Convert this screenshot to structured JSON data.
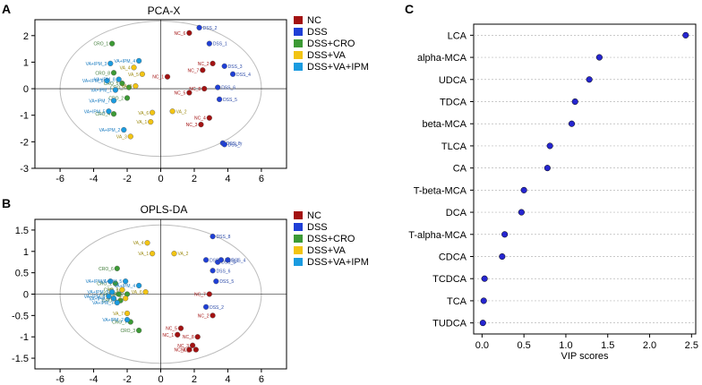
{
  "colors": {
    "NC": "#a31212",
    "DSS": "#1f3fd6",
    "DSS+CRO": "#3c9a35",
    "DSS+VA": "#f2c414",
    "DSS+VA+IPM": "#1a9be0",
    "vip_dot": "#2626d0",
    "text_NC": "#a31212",
    "text_DSS": "#2b4aa8",
    "text_CRO": "#3c7a35",
    "text_VA": "#9c8a10",
    "text_VAIPM": "#1a7bc0"
  },
  "panels": {
    "A": {
      "letter": "A",
      "title": "PCA-X"
    },
    "B": {
      "letter": "B",
      "title": "OPLS-DA"
    },
    "C": {
      "letter": "C",
      "title": ""
    }
  },
  "chart_data": [
    {
      "id": "pca",
      "type": "scatter",
      "title": "PCA-X",
      "xlim": [
        -7.5,
        7.5
      ],
      "ylim": [
        -3,
        2.6
      ],
      "xticks": [
        -6,
        -4,
        -2,
        0,
        2,
        4,
        6
      ],
      "yticks": [
        -3,
        -2,
        -1,
        0,
        1,
        2
      ],
      "ellipse": {
        "rx": 6.0,
        "ry": 2.55
      },
      "legend": [
        "NC",
        "DSS",
        "DSS+CRO",
        "DSS+VA",
        "DSS+VA+IPM"
      ],
      "points": [
        {
          "label": "NC_6",
          "group": "NC",
          "x": 1.7,
          "y": 2.1
        },
        {
          "label": "NC_2",
          "group": "NC",
          "x": 3.1,
          "y": 0.95
        },
        {
          "label": "NC_7",
          "group": "NC",
          "x": 2.5,
          "y": 0.7
        },
        {
          "label": "NC_1",
          "group": "NC",
          "x": 0.4,
          "y": 0.45
        },
        {
          "label": "NC_5",
          "group": "NC",
          "x": 1.7,
          "y": -0.15
        },
        {
          "label": "NC_8",
          "group": "NC",
          "x": 2.6,
          "y": 0.0
        },
        {
          "label": "NC_4",
          "group": "NC",
          "x": 2.9,
          "y": -1.1
        },
        {
          "label": "NC_3",
          "group": "NC",
          "x": 2.4,
          "y": -1.35
        },
        {
          "label": "DSS_2",
          "group": "DSS",
          "x": 2.3,
          "y": 2.3
        },
        {
          "label": "DSS_1",
          "group": "DSS",
          "x": 2.9,
          "y": 1.7
        },
        {
          "label": "DSS_3",
          "group": "DSS",
          "x": 3.8,
          "y": 0.85
        },
        {
          "label": "DSS_4",
          "group": "DSS",
          "x": 4.3,
          "y": 0.55
        },
        {
          "label": "DSS_6",
          "group": "DSS",
          "x": 3.4,
          "y": 0.05
        },
        {
          "label": "DSS_5",
          "group": "DSS",
          "x": 3.5,
          "y": -0.4
        },
        {
          "label": "DSS_8",
          "group": "DSS",
          "x": 3.7,
          "y": -2.05
        },
        {
          "label": "DSS_7",
          "group": "DSS",
          "x": 3.8,
          "y": -2.1
        },
        {
          "label": "CRO_1",
          "group": "DSS+CRO",
          "x": -2.9,
          "y": 1.7
        },
        {
          "label": "CRO_3",
          "group": "DSS+CRO",
          "x": -1.9,
          "y": 0.05
        },
        {
          "label": "CRO_2",
          "group": "DSS+CRO",
          "x": -2.0,
          "y": -0.35
        },
        {
          "label": "CRO_4",
          "group": "DSS+CRO",
          "x": -2.8,
          "y": -0.95
        },
        {
          "label": "CRO_5",
          "group": "DSS+CRO",
          "x": -2.3,
          "y": 0.2
        },
        {
          "label": "CRO_8",
          "group": "DSS+CRO",
          "x": -2.8,
          "y": 0.6
        },
        {
          "label": "VA_4",
          "group": "DSS+VA",
          "x": -1.6,
          "y": 0.8
        },
        {
          "label": "VA_5",
          "group": "DSS+VA",
          "x": -1.1,
          "y": 0.55
        },
        {
          "label": "VA_2",
          "group": "DSS+VA",
          "x": 0.7,
          "y": -0.85
        },
        {
          "label": "VA_6",
          "group": "DSS+VA",
          "x": -0.5,
          "y": -0.9
        },
        {
          "label": "VA_1",
          "group": "DSS+VA",
          "x": -0.6,
          "y": -1.25
        },
        {
          "label": "VA_3",
          "group": "DSS+VA",
          "x": -1.8,
          "y": -1.8
        },
        {
          "label": "VA_8",
          "group": "DSS+VA",
          "x": -1.5,
          "y": 0.1
        },
        {
          "label": "VA+IPM_3",
          "group": "DSS+VA+IPM",
          "x": -3.0,
          "y": 0.95
        },
        {
          "label": "VA+IPM_4",
          "group": "DSS+VA+IPM",
          "x": -1.3,
          "y": 1.05
        },
        {
          "label": "VA+IPM_6",
          "group": "DSS+VA+IPM",
          "x": -3.2,
          "y": 0.3
        },
        {
          "label": "VA+IPM_8",
          "group": "DSS+VA+IPM",
          "x": -2.5,
          "y": 0.35
        },
        {
          "label": "VA+IPM_1",
          "group": "DSS+VA+IPM",
          "x": -2.7,
          "y": -0.05
        },
        {
          "label": "VA+IPM_7",
          "group": "DSS+VA+IPM",
          "x": -2.8,
          "y": -0.45
        },
        {
          "label": "VA+IPM_5",
          "group": "DSS+VA+IPM",
          "x": -3.1,
          "y": -0.85
        },
        {
          "label": "VA+IPM_2",
          "group": "DSS+VA+IPM",
          "x": -2.2,
          "y": -1.55
        }
      ]
    },
    {
      "id": "oplsda",
      "type": "scatter",
      "title": "OPLS-DA",
      "xlim": [
        -7.5,
        7.5
      ],
      "ylim": [
        -1.75,
        1.75
      ],
      "xticks": [
        -6,
        -4,
        -2,
        0,
        2,
        4,
        6
      ],
      "yticks": [
        -1.5,
        -1,
        -0.5,
        0,
        0.5,
        1,
        1.5
      ],
      "ellipse": {
        "rx": 6.0,
        "ry": 1.62
      },
      "legend": [
        "NC",
        "DSS",
        "DSS+CRO",
        "DSS+VA",
        "DSS+VA+IPM"
      ],
      "points": [
        {
          "label": "NC_7",
          "group": "NC",
          "x": 2.9,
          "y": 0.0
        },
        {
          "label": "NC_2",
          "group": "NC",
          "x": 3.1,
          "y": -0.5
        },
        {
          "label": "NC_5",
          "group": "NC",
          "x": 1.2,
          "y": -0.8
        },
        {
          "label": "NC_1",
          "group": "NC",
          "x": 1.0,
          "y": -0.95
        },
        {
          "label": "NC_8",
          "group": "NC",
          "x": 2.2,
          "y": -1.0
        },
        {
          "label": "NC_3",
          "group": "NC",
          "x": 1.9,
          "y": -1.2
        },
        {
          "label": "NC_6",
          "group": "NC",
          "x": 1.7,
          "y": -1.3
        },
        {
          "label": "NC_4",
          "group": "NC",
          "x": 2.1,
          "y": -1.3
        },
        {
          "label": "DSS_8",
          "group": "DSS",
          "x": 3.1,
          "y": 1.35
        },
        {
          "label": "DSS_3",
          "group": "DSS",
          "x": 3.4,
          "y": 0.75
        },
        {
          "label": "DSS_4",
          "group": "DSS",
          "x": 4.0,
          "y": 0.8
        },
        {
          "label": "DSS_6",
          "group": "DSS",
          "x": 3.1,
          "y": 0.55
        },
        {
          "label": "DSS_5",
          "group": "DSS",
          "x": 3.3,
          "y": 0.3
        },
        {
          "label": "DSS_2",
          "group": "DSS",
          "x": 2.7,
          "y": -0.3
        },
        {
          "label": "DSS_1",
          "group": "DSS",
          "x": 3.6,
          "y": 0.8
        },
        {
          "label": "DSS_7",
          "group": "DSS",
          "x": 2.7,
          "y": 0.8
        },
        {
          "label": "CRO_6",
          "group": "DSS+CRO",
          "x": -2.6,
          "y": 0.6
        },
        {
          "label": "CRO_1",
          "group": "DSS+CRO",
          "x": -2.7,
          "y": 0.25
        },
        {
          "label": "CRO_5",
          "group": "DSS+CRO",
          "x": -2.3,
          "y": 0.1
        },
        {
          "label": "CRO_8",
          "group": "DSS+CRO",
          "x": -2.5,
          "y": 0.0
        },
        {
          "label": "CRO_2",
          "group": "DSS+CRO",
          "x": -2.0,
          "y": 0.0
        },
        {
          "label": "CRO_4",
          "group": "DSS+CRO",
          "x": -2.4,
          "y": -0.15
        },
        {
          "label": "CRO_7",
          "group": "DSS+CRO",
          "x": -1.8,
          "y": -0.65
        },
        {
          "label": "CRO_3",
          "group": "DSS+CRO",
          "x": -1.3,
          "y": -0.85
        },
        {
          "label": "VA_4",
          "group": "DSS+VA",
          "x": -0.8,
          "y": 1.2
        },
        {
          "label": "VA_1",
          "group": "DSS+VA",
          "x": -0.5,
          "y": 0.95
        },
        {
          "label": "VA_2",
          "group": "DSS+VA",
          "x": 0.8,
          "y": 0.95
        },
        {
          "label": "VA_3",
          "group": "DSS+VA",
          "x": -2.3,
          "y": 0.1
        },
        {
          "label": "VA_5",
          "group": "DSS+VA",
          "x": -2.1,
          "y": -0.1
        },
        {
          "label": "VA_6",
          "group": "DSS+VA",
          "x": -0.9,
          "y": 0.05
        },
        {
          "label": "VA_7",
          "group": "DSS+VA",
          "x": -2.0,
          "y": -0.45
        },
        {
          "label": "VA+IPM_1",
          "group": "DSS+VA+IPM",
          "x": -3.0,
          "y": 0.3
        },
        {
          "label": "VA+IPM_3",
          "group": "DSS+VA+IPM",
          "x": -2.9,
          "y": 0.05
        },
        {
          "label": "VA+IPM_4",
          "group": "DSS+VA+IPM",
          "x": -1.3,
          "y": 0.2
        },
        {
          "label": "VA+IPM_5",
          "group": "DSS+VA+IPM",
          "x": -2.1,
          "y": 0.3
        },
        {
          "label": "VA+IPM_6",
          "group": "DSS+VA+IPM",
          "x": -2.8,
          "y": -0.1
        },
        {
          "label": "VA+IPM_7",
          "group": "DSS+VA+IPM",
          "x": -2.6,
          "y": -0.2
        },
        {
          "label": "VA+IPM_8",
          "group": "DSS+VA+IPM",
          "x": -3.1,
          "y": -0.05
        },
        {
          "label": "VA+IPM_2",
          "group": "DSS+VA+IPM",
          "x": -2.0,
          "y": -0.6
        }
      ]
    },
    {
      "id": "vip",
      "type": "scatter",
      "title": "",
      "xlabel": "VIP scores",
      "xlim": [
        -0.1,
        2.55
      ],
      "xticks": [
        0.0,
        0.5,
        1.0,
        1.5,
        2.0,
        2.5
      ],
      "xticklabels": [
        "0.0",
        "0.5",
        "1.0",
        "1.5",
        "2.0",
        "2.5"
      ],
      "categories": [
        "LCA",
        "alpha-MCA",
        "UDCA",
        "TDCA",
        "beta-MCA",
        "TLCA",
        "CA",
        "T-beta-MCA",
        "DCA",
        "T-alpha-MCA",
        "CDCA",
        "TCDCA",
        "TCA",
        "TUDCA"
      ],
      "values": [
        2.43,
        1.4,
        1.28,
        1.11,
        1.07,
        0.81,
        0.78,
        0.5,
        0.47,
        0.27,
        0.24,
        0.03,
        0.02,
        0.01
      ]
    }
  ]
}
